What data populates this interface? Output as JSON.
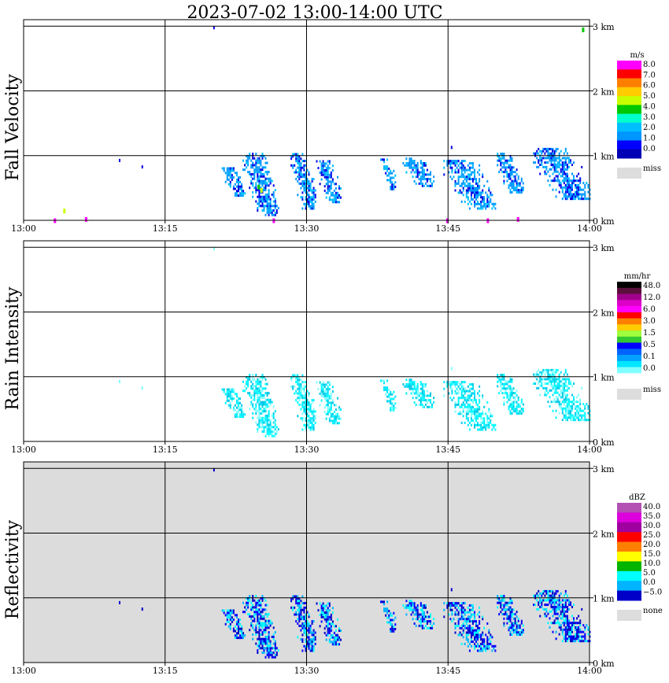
{
  "title": "2023-07-02   13:00-14:00 UTC",
  "chart_data": [
    {
      "type": "heatmap",
      "ylabel": "Fall Velocity",
      "x_range_minutes": [
        0,
        60
      ],
      "y_range_km": [
        0,
        3.1
      ],
      "xticks": [
        "13:00",
        "13:15",
        "13:30",
        "13:45",
        "14:00"
      ],
      "yticks": [
        "0 km",
        "1 km",
        "2 km",
        "3 km"
      ],
      "background": "#ffffff",
      "colorbar": {
        "unit": "m/s",
        "labels": [
          "8.0",
          "7.0",
          "6.0",
          "5.0",
          "4.0",
          "3.0",
          "2.0",
          "1.0",
          "0.0"
        ],
        "colors": [
          "#ff00ff",
          "#ff0000",
          "#ff7f00",
          "#ffcc00",
          "#c8ff00",
          "#00c800",
          "#00ffcc",
          "#00bfff",
          "#0096ff",
          "#0000ff",
          "#0000b4"
        ],
        "missing_label": "miss",
        "missing_color": "#dddddd"
      },
      "features": {
        "cell_colors": [
          "#0000e6",
          "#0099ff",
          "#00bfff",
          "#0096ff"
        ],
        "accent_cells": [
          {
            "t": 24.8,
            "km": 0.55,
            "color": "#00c800"
          },
          {
            "t": 25.1,
            "km": 0.5,
            "color": "#c8ff00"
          },
          {
            "t": 4.2,
            "km": 0.18,
            "color": "#c8ff00"
          },
          {
            "t": 26.4,
            "km": 0.03,
            "color": "#ff00ff"
          },
          {
            "t": 44.8,
            "km": 0.03,
            "color": "#ff00ff"
          },
          {
            "t": 6.5,
            "km": 0.05,
            "color": "#ff00ff"
          },
          {
            "t": 3.2,
            "km": 0.03,
            "color": "#ff00ff"
          },
          {
            "t": 52.3,
            "km": 0.05,
            "color": "#ff00ff"
          },
          {
            "t": 49.1,
            "km": 0.03,
            "color": "#ff00ff"
          },
          {
            "t": 59.2,
            "km": 2.98,
            "color": "#00c800"
          }
        ]
      }
    },
    {
      "type": "heatmap",
      "ylabel": "Rain Intensity",
      "x_range_minutes": [
        0,
        60
      ],
      "y_range_km": [
        0,
        3.1
      ],
      "xticks": [
        "13:00",
        "13:15",
        "13:30",
        "13:45",
        "14:00"
      ],
      "yticks": [
        "0 km",
        "1 km",
        "2 km",
        "3 km"
      ],
      "background": "#ffffff",
      "colorbar": {
        "unit": "mm/hr",
        "labels": [
          "48.0",
          "12.0",
          "6.0",
          "3.0",
          "1.5",
          "0.5",
          "0.1",
          "0.0"
        ],
        "colors": [
          "#000000",
          "#5a0f3c",
          "#a0008c",
          "#dc00c8",
          "#ff00ff",
          "#ff0000",
          "#ff7f00",
          "#ffcc00",
          "#a0ff3c",
          "#32c832",
          "#0000ff",
          "#0064ff",
          "#00a0ff",
          "#00e6ff",
          "#80ffff",
          "#ffffff"
        ],
        "missing_label": "miss",
        "missing_color": "#dddddd"
      },
      "features": {
        "cell_colors": [
          "#80ffff",
          "#00ffff",
          "#00e6ff",
          "#00c8e6"
        ],
        "accent_cells": []
      }
    },
    {
      "type": "heatmap",
      "ylabel": "Reflectivity",
      "x_range_minutes": [
        0,
        60
      ],
      "y_range_km": [
        0,
        3.1
      ],
      "xticks": [
        "13:00",
        "13:15",
        "13:30",
        "13:45",
        "14:00"
      ],
      "yticks": [
        "0 km",
        "1 km",
        "2 km",
        "3 km"
      ],
      "background": "#dcdcdc",
      "colorbar": {
        "unit": "dBZ",
        "labels": [
          "40.0",
          "35.0",
          "30.0",
          "25.0",
          "20.0",
          "15.0",
          "10.0",
          "5.0",
          "0.0",
          "−5.0"
        ],
        "colors": [
          "#b450b4",
          "#dc00dc",
          "#a000a0",
          "#ff0000",
          "#ff7f00",
          "#ffff00",
          "#00b400",
          "#00ffff",
          "#00b4ff",
          "#0000c8"
        ],
        "missing_label": "none",
        "missing_color": "#dddddd"
      },
      "features": {
        "cell_colors": [
          "#0000c8",
          "#0000ff",
          "#00b4ff",
          "#00ffff"
        ],
        "accent_cells": []
      }
    }
  ],
  "cloud_regions": [
    {
      "t0": 23.2,
      "t1": 27.0,
      "k0": 0.1,
      "k1": 1.05,
      "skew": 1.3
    },
    {
      "t0": 28.3,
      "t1": 31.0,
      "k0": 0.2,
      "k1": 1.05,
      "skew": 0.6
    },
    {
      "t0": 31.0,
      "t1": 33.6,
      "k0": 0.3,
      "k1": 0.95,
      "skew": 0.8
    },
    {
      "t0": 21.0,
      "t1": 23.5,
      "k0": 0.4,
      "k1": 0.85,
      "skew": 0.9
    },
    {
      "t0": 37.8,
      "t1": 39.5,
      "k0": 0.5,
      "k1": 0.98,
      "skew": 0.9
    },
    {
      "t0": 40.0,
      "t1": 43.5,
      "k0": 0.55,
      "k1": 1.0,
      "skew": 2.0
    },
    {
      "t0": 44.5,
      "t1": 50.0,
      "k0": 0.2,
      "k1": 0.95,
      "skew": 3.5
    },
    {
      "t0": 50.0,
      "t1": 53.0,
      "k0": 0.45,
      "k1": 1.05,
      "skew": 2.2
    },
    {
      "t0": 54.0,
      "t1": 60.0,
      "k0": 0.35,
      "k1": 1.15,
      "skew": 1.2
    }
  ],
  "sparse_points": [
    {
      "t": 10.1,
      "km": 0.95
    },
    {
      "t": 12.5,
      "km": 0.85
    },
    {
      "t": 20.1,
      "km": 3.0
    },
    {
      "t": 45.3,
      "km": 1.15
    },
    {
      "t": 56.0,
      "km": 1.1
    }
  ]
}
